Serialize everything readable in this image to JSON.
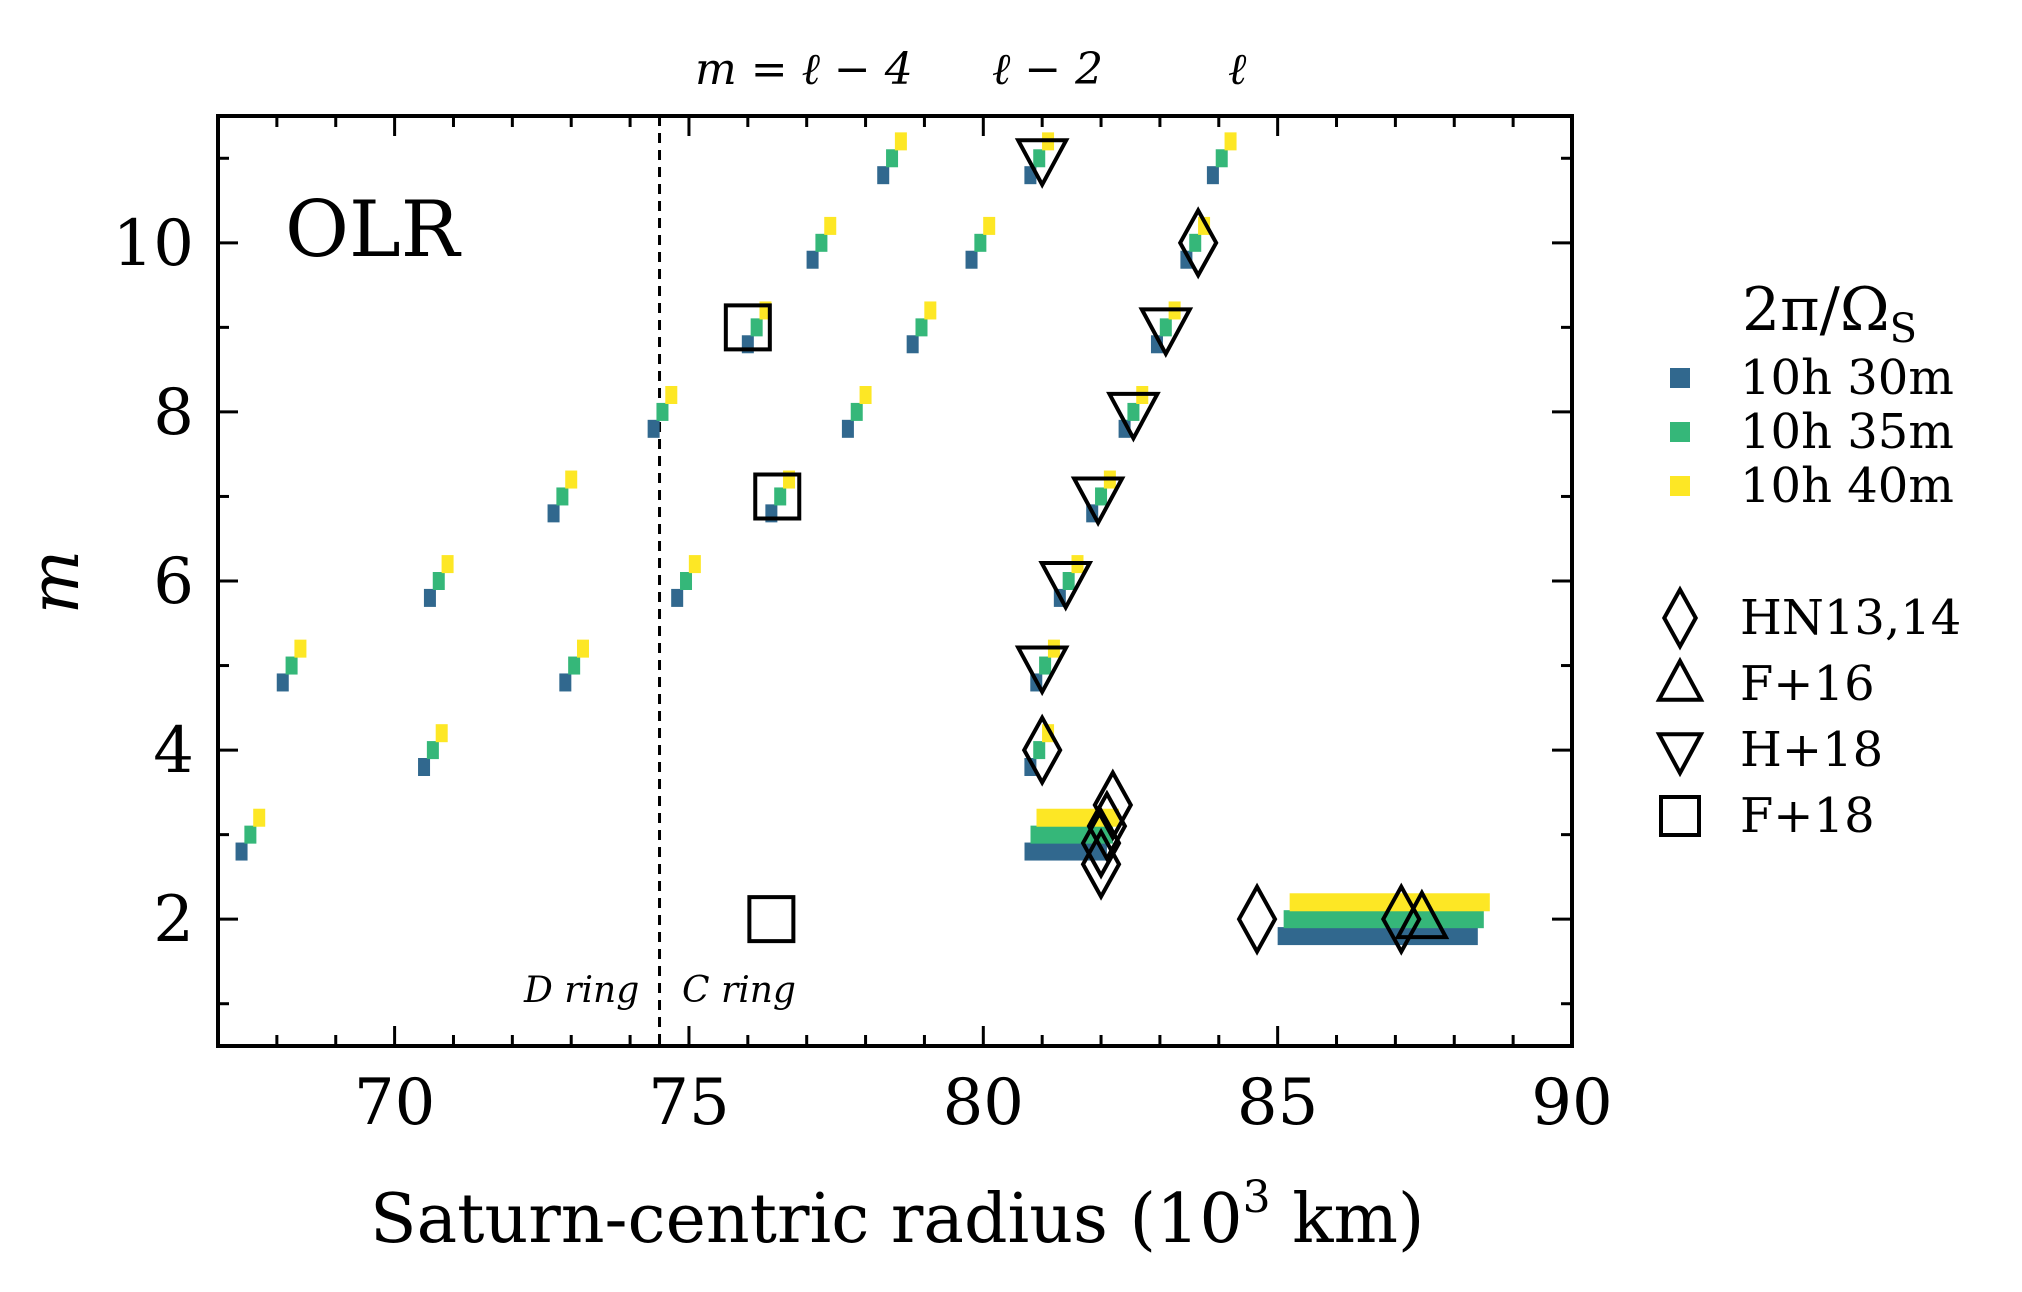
{
  "chart_data": {
    "type": "scatter",
    "panel_label": "OLR",
    "xlabel": "Saturn-centric radius (10",
    "xlabel_sup": "3",
    "xlabel_suffix": " km)",
    "ylabel": "m",
    "xlim": [
      67,
      90
    ],
    "ylim": [
      0.5,
      11.5
    ],
    "xticks": [
      70,
      75,
      80,
      85,
      90
    ],
    "yticks": [
      2,
      4,
      6,
      8,
      10
    ],
    "grid": false,
    "legend_title": "2π/Ω",
    "legend_title_sub": "S",
    "legend_placement": "right",
    "top_labels": [
      "m = ℓ − 4",
      "ℓ − 2",
      "ℓ"
    ],
    "annotations": {
      "divider_x": 74.5,
      "d_ring": "D ring",
      "c_ring": "C ring"
    },
    "colors": {
      "rot_30": "#31688e",
      "rot_35": "#35b779",
      "rot_40": "#fde725"
    },
    "rotation_series": [
      {
        "name": "10h 30m",
        "color_key": "rot_30",
        "dy": -0.2
      },
      {
        "name": "10h 35m",
        "color_key": "rot_35",
        "dy": 0.0
      },
      {
        "name": "10h 40m",
        "color_key": "rot_40",
        "dy": 0.2
      }
    ],
    "resonances": [
      {
        "m": 3,
        "x": [
          67.4,
          67.55,
          67.7
        ]
      },
      {
        "m": 5,
        "x": [
          68.1,
          68.25,
          68.4
        ]
      },
      {
        "m": 7,
        "x": [
          72.7,
          72.85,
          73.0
        ]
      },
      {
        "m": 9,
        "x": [
          76.0,
          76.15,
          76.3
        ]
      },
      {
        "m": 11,
        "x": [
          78.3,
          78.45,
          78.6
        ]
      },
      {
        "m": 4,
        "x": [
          70.5,
          70.65,
          70.8
        ]
      },
      {
        "m": 6,
        "x": [
          70.6,
          70.75,
          70.9
        ]
      },
      {
        "m": 8,
        "x": [
          74.4,
          74.55,
          74.7
        ]
      },
      {
        "m": 10,
        "x": [
          77.1,
          77.25,
          77.4
        ]
      },
      {
        "m": 5,
        "x": [
          72.9,
          73.05,
          73.2
        ]
      },
      {
        "m": 6,
        "x": [
          74.8,
          74.95,
          75.1
        ]
      },
      {
        "m": 7,
        "x": [
          76.4,
          76.55,
          76.7
        ]
      },
      {
        "m": 8,
        "x": [
          77.7,
          77.85,
          78.0
        ]
      },
      {
        "m": 9,
        "x": [
          78.8,
          78.95,
          79.1
        ]
      },
      {
        "m": 10,
        "x": [
          79.8,
          79.95,
          80.1
        ]
      },
      {
        "m": 4,
        "x": [
          80.8,
          80.95,
          81.1
        ]
      },
      {
        "m": 5,
        "x": [
          80.9,
          81.05,
          81.2
        ]
      },
      {
        "m": 6,
        "x": [
          81.3,
          81.45,
          81.6
        ]
      },
      {
        "m": 7,
        "x": [
          81.85,
          82.0,
          82.15
        ]
      },
      {
        "m": 8,
        "x": [
          82.4,
          82.55,
          82.7
        ]
      },
      {
        "m": 9,
        "x": [
          82.95,
          83.1,
          83.25
        ]
      },
      {
        "m": 10,
        "x": [
          83.45,
          83.6,
          83.75
        ]
      },
      {
        "m": 11,
        "x": [
          80.8,
          80.95,
          81.1
        ]
      },
      {
        "m": 11,
        "x": [
          83.9,
          84.05,
          84.2
        ]
      }
    ],
    "ranges": [
      {
        "m": 3,
        "x_range": [
          80.7,
          82.1
        ]
      },
      {
        "m": 2,
        "x_range": [
          85.0,
          88.4
        ]
      }
    ],
    "observations": [
      {
        "name": "HN13,14",
        "shape": "diamond",
        "points": [
          [
            81.0,
            4.0
          ],
          [
            83.65,
            10.0
          ],
          [
            82.0,
            2.65
          ],
          [
            82.0,
            2.9
          ],
          [
            82.1,
            3.1
          ],
          [
            82.2,
            3.35
          ],
          [
            84.65,
            2.0
          ],
          [
            87.1,
            2.0
          ]
        ]
      },
      {
        "name": "F+16",
        "shape": "triangle-up",
        "points": [
          [
            87.45,
            2.0
          ]
        ]
      },
      {
        "name": "H+18",
        "shape": "triangle-down",
        "points": [
          [
            81.0,
            5.0
          ],
          [
            81.4,
            6.0
          ],
          [
            81.95,
            7.0
          ],
          [
            82.55,
            8.0
          ],
          [
            83.1,
            9.0
          ],
          [
            81.0,
            11.0
          ]
        ]
      },
      {
        "name": "F+18",
        "shape": "square",
        "points": [
          [
            76.0,
            9.0
          ],
          [
            76.5,
            7.0
          ],
          [
            76.4,
            2.0
          ]
        ]
      }
    ]
  }
}
